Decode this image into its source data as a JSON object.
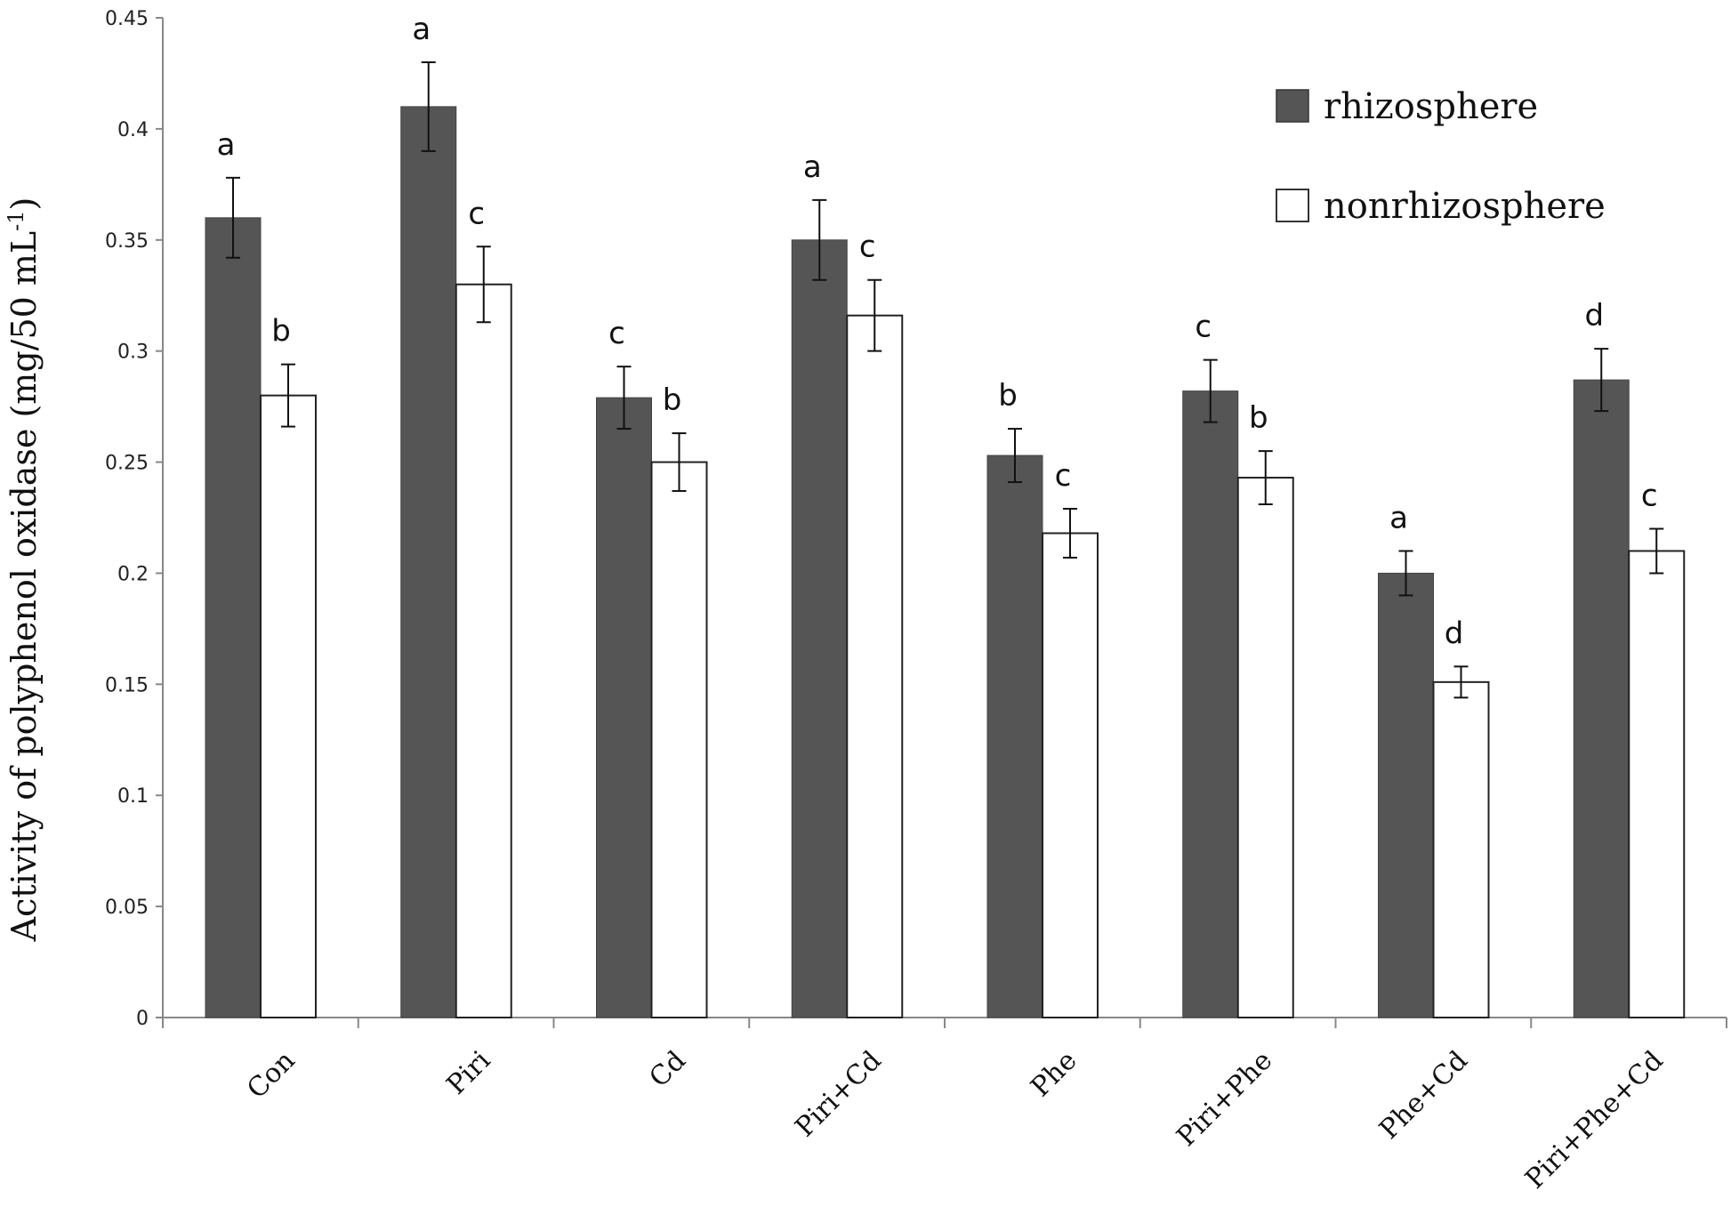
{
  "chart_data": {
    "type": "bar",
    "title": "",
    "xlabel": "",
    "ylabel": "Activity of  polyphenol oxidase (mg/50 mL",
    "ylabel_sup": "-1",
    "ylabel_close": ")",
    "ylim": [
      0,
      0.45
    ],
    "yticks": [
      0,
      0.05,
      0.1,
      0.15,
      0.2,
      0.25,
      0.3,
      0.35,
      0.4,
      0.45
    ],
    "ytick_labels": [
      "0",
      "0.05",
      "0.1",
      "0.15",
      "0.2",
      "0.25",
      "0.3",
      "0.35",
      "0.4",
      "0.45"
    ],
    "categories": [
      "Con",
      "Piri",
      "Cd",
      "Piri+Cd",
      "Phe",
      "Piri+Phe",
      "Phe+Cd",
      "Piri+Phe+Cd"
    ],
    "legend_position": "top-right",
    "series": [
      {
        "name": "rhizosphere",
        "color": "#555555",
        "values": [
          0.36,
          0.41,
          0.279,
          0.35,
          0.253,
          0.282,
          0.2,
          0.287
        ],
        "errors": [
          0.018,
          0.02,
          0.014,
          0.018,
          0.012,
          0.014,
          0.01,
          0.014
        ],
        "letters": [
          "a",
          "a",
          "c",
          "a",
          "b",
          "c",
          "a",
          "d"
        ]
      },
      {
        "name": "nonrhizosphere",
        "color": "#ffffff",
        "values": [
          0.28,
          0.33,
          0.25,
          0.316,
          0.218,
          0.243,
          0.151,
          0.21
        ],
        "errors": [
          0.014,
          0.017,
          0.013,
          0.016,
          0.011,
          0.012,
          0.007,
          0.01
        ],
        "letters": [
          "b",
          "c",
          "b",
          "c",
          "c",
          "b",
          "d",
          "c"
        ]
      }
    ]
  }
}
